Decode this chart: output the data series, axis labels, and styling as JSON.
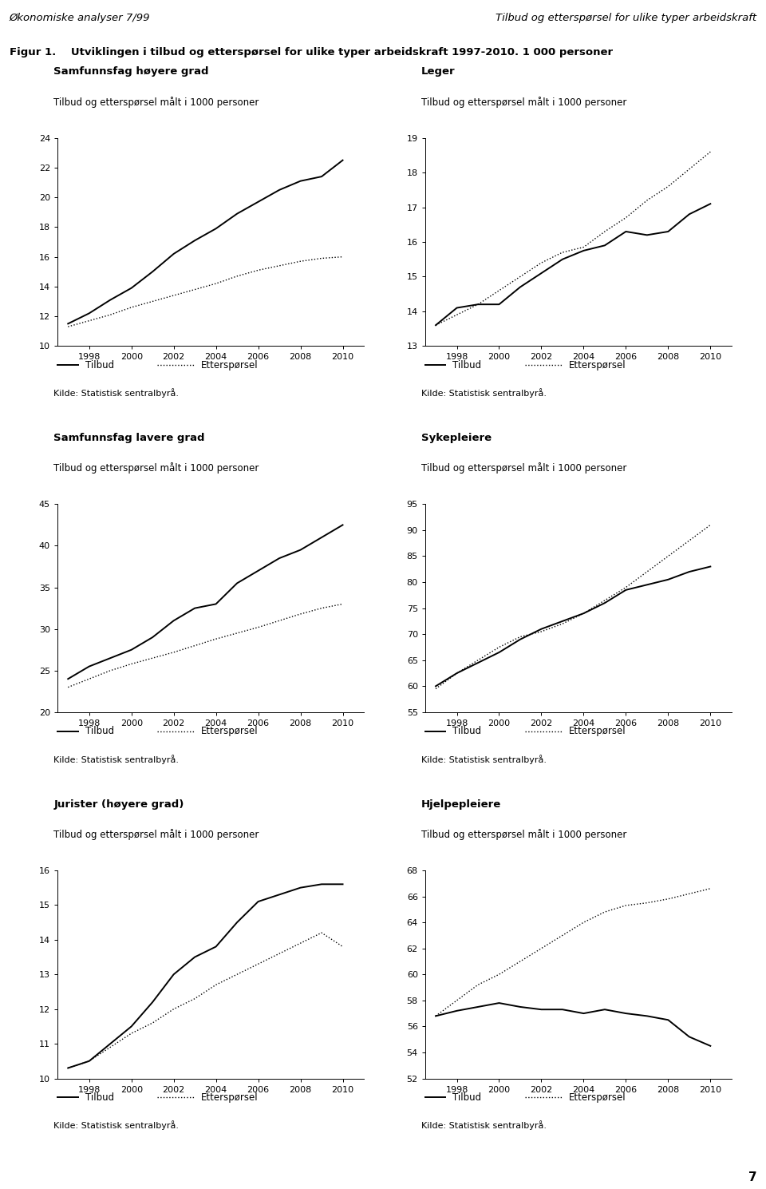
{
  "header_left": "Økonomiske analyser 7/99",
  "header_right": "Tilbud og etterspørsel for ulike typer arbeidskraft",
  "figure_title_prefix": "Figur 1.",
  "figure_title_rest": "   Utviklingen i tilbud og etterspørsel for ulike typer arbeidskraft 1997-2010. 1 000 personer",
  "source_text": "Kilde: Statistisk sentralbyrå.",
  "legend_supply": "Tilbud",
  "legend_demand": "Etterspørsel",
  "panels": [
    {
      "title_bold": "Samfunnsfag høyere grad",
      "title_sub": "Tilbud og etterspørsel målt i 1000 personer",
      "ylim": [
        10,
        24
      ],
      "yticks": [
        10,
        12,
        14,
        16,
        18,
        20,
        22,
        24
      ],
      "supply_x": [
        1997,
        1998,
        1999,
        2000,
        2001,
        2002,
        2003,
        2004,
        2005,
        2006,
        2007,
        2008,
        2009,
        2010
      ],
      "supply_y": [
        11.5,
        12.2,
        13.1,
        13.9,
        15.0,
        16.2,
        17.1,
        17.9,
        18.9,
        19.7,
        20.5,
        21.1,
        21.4,
        22.5
      ],
      "demand_x": [
        1997,
        1998,
        1999,
        2000,
        2001,
        2002,
        2003,
        2004,
        2005,
        2006,
        2007,
        2008,
        2009,
        2010
      ],
      "demand_y": [
        11.3,
        11.7,
        12.1,
        12.6,
        13.0,
        13.4,
        13.8,
        14.2,
        14.7,
        15.1,
        15.4,
        15.7,
        15.9,
        16.0
      ]
    },
    {
      "title_bold": "Leger",
      "title_sub": "Tilbud og etterspørsel målt i 1000 personer",
      "ylim": [
        13,
        19
      ],
      "yticks": [
        13,
        14,
        15,
        16,
        17,
        18,
        19
      ],
      "supply_x": [
        1997,
        1998,
        1999,
        2000,
        2001,
        2002,
        2003,
        2004,
        2005,
        2006,
        2007,
        2008,
        2009,
        2010
      ],
      "supply_y": [
        13.6,
        14.1,
        14.2,
        14.2,
        14.7,
        15.1,
        15.5,
        15.75,
        15.9,
        16.3,
        16.2,
        16.3,
        16.8,
        17.1
      ],
      "demand_x": [
        1997,
        1998,
        1999,
        2000,
        2001,
        2002,
        2003,
        2004,
        2005,
        2006,
        2007,
        2008,
        2009,
        2010
      ],
      "demand_y": [
        13.6,
        13.9,
        14.2,
        14.6,
        15.0,
        15.4,
        15.7,
        15.85,
        16.3,
        16.7,
        17.2,
        17.6,
        18.1,
        18.6
      ]
    },
    {
      "title_bold": "Samfunnsfag lavere grad",
      "title_sub": "Tilbud og etterspørsel målt i 1000 personer",
      "ylim": [
        20,
        45
      ],
      "yticks": [
        20,
        25,
        30,
        35,
        40,
        45
      ],
      "supply_x": [
        1997,
        1998,
        1999,
        2000,
        2001,
        2002,
        2003,
        2004,
        2005,
        2006,
        2007,
        2008,
        2009,
        2010
      ],
      "supply_y": [
        24.0,
        25.5,
        26.5,
        27.5,
        29.0,
        31.0,
        32.5,
        33.0,
        35.5,
        37.0,
        38.5,
        39.5,
        41.0,
        42.5
      ],
      "demand_x": [
        1997,
        1998,
        1999,
        2000,
        2001,
        2002,
        2003,
        2004,
        2005,
        2006,
        2007,
        2008,
        2009,
        2010
      ],
      "demand_y": [
        23.0,
        24.0,
        25.0,
        25.8,
        26.5,
        27.2,
        28.0,
        28.8,
        29.5,
        30.2,
        31.0,
        31.8,
        32.5,
        33.0
      ]
    },
    {
      "title_bold": "Sykepleiere",
      "title_sub": "Tilbud og etterspørsel målt i 1000 personer",
      "ylim": [
        55,
        95
      ],
      "yticks": [
        55,
        60,
        65,
        70,
        75,
        80,
        85,
        90,
        95
      ],
      "supply_x": [
        1997,
        1998,
        1999,
        2000,
        2001,
        2002,
        2003,
        2004,
        2005,
        2006,
        2007,
        2008,
        2009,
        2010
      ],
      "supply_y": [
        60.0,
        62.5,
        64.5,
        66.5,
        69.0,
        71.0,
        72.5,
        74.0,
        76.0,
        78.5,
        79.5,
        80.5,
        82.0,
        83.0
      ],
      "demand_x": [
        1997,
        1998,
        1999,
        2000,
        2001,
        2002,
        2003,
        2004,
        2005,
        2006,
        2007,
        2008,
        2009,
        2010
      ],
      "demand_y": [
        59.5,
        62.5,
        65.0,
        67.5,
        69.5,
        70.5,
        72.0,
        74.0,
        76.5,
        79.0,
        82.0,
        85.0,
        88.0,
        91.0
      ]
    },
    {
      "title_bold": "Jurister (høyere grad)",
      "title_sub": "Tilbud og etterspørsel målt i 1000 personer",
      "ylim": [
        10,
        16
      ],
      "yticks": [
        10,
        11,
        12,
        13,
        14,
        15,
        16
      ],
      "supply_x": [
        1997,
        1998,
        1999,
        2000,
        2001,
        2002,
        2003,
        2004,
        2005,
        2006,
        2007,
        2008,
        2009,
        2010
      ],
      "supply_y": [
        10.3,
        10.5,
        11.0,
        11.5,
        12.2,
        13.0,
        13.5,
        13.8,
        14.5,
        15.1,
        15.3,
        15.5,
        15.6,
        15.6
      ],
      "demand_x": [
        1997,
        1998,
        1999,
        2000,
        2001,
        2002,
        2003,
        2004,
        2005,
        2006,
        2007,
        2008,
        2009,
        2010
      ],
      "demand_y": [
        10.3,
        10.5,
        10.9,
        11.3,
        11.6,
        12.0,
        12.3,
        12.7,
        13.0,
        13.3,
        13.6,
        13.9,
        14.2,
        13.8
      ]
    },
    {
      "title_bold": "Hjelpepleiere",
      "title_sub": "Tilbud og etterspørsel målt i 1000 personer",
      "ylim": [
        52,
        68
      ],
      "yticks": [
        52,
        54,
        56,
        58,
        60,
        62,
        64,
        66,
        68
      ],
      "supply_x": [
        1997,
        1998,
        1999,
        2000,
        2001,
        2002,
        2003,
        2004,
        2005,
        2006,
        2007,
        2008,
        2009,
        2010
      ],
      "supply_y": [
        56.8,
        57.2,
        57.5,
        57.8,
        57.5,
        57.3,
        57.3,
        57.0,
        57.3,
        57.0,
        56.8,
        56.5,
        55.2,
        54.5
      ],
      "demand_x": [
        1997,
        1998,
        1999,
        2000,
        2001,
        2002,
        2003,
        2004,
        2005,
        2006,
        2007,
        2008,
        2009,
        2010
      ],
      "demand_y": [
        56.8,
        58.0,
        59.2,
        60.0,
        61.0,
        62.0,
        63.0,
        64.0,
        64.8,
        65.3,
        65.5,
        65.8,
        66.2,
        66.6
      ]
    }
  ],
  "bg_color": "#ffffff",
  "line_color": "#000000",
  "supply_linewidth": 1.4,
  "demand_linewidth": 1.0,
  "xticks": [
    1998,
    2000,
    2002,
    2004,
    2006,
    2008,
    2010
  ],
  "xlim": [
    1996.5,
    2011.0
  ]
}
